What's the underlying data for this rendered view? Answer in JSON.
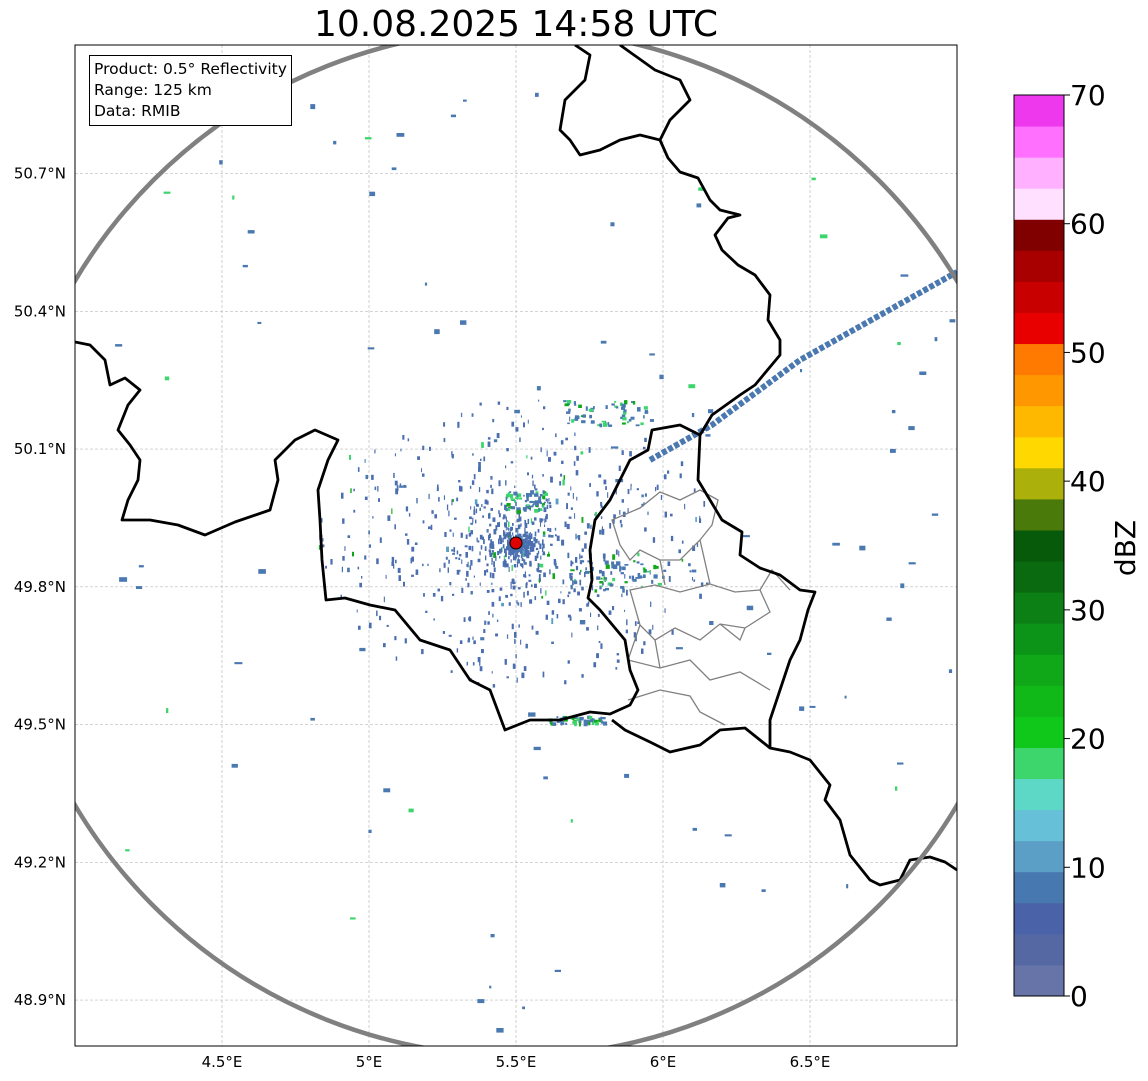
{
  "title": "10.08.2025 14:58 UTC",
  "info": {
    "line1": "Product: 0.5° Reflectivity",
    "line2": "Range: 125 km",
    "line3": "Data: RMIB"
  },
  "map": {
    "lon_range": [
      4.0,
      7.0
    ],
    "lat_range": [
      48.8,
      50.98
    ],
    "lon_ticks": [
      {
        "value": 4.5,
        "label": "4.5°E"
      },
      {
        "value": 5.0,
        "label": "5°E"
      },
      {
        "value": 5.5,
        "label": "5.5°E"
      },
      {
        "value": 6.0,
        "label": "6°E"
      },
      {
        "value": 6.5,
        "label": "6.5°E"
      }
    ],
    "lat_ticks": [
      {
        "value": 48.9,
        "label": "48.9°N"
      },
      {
        "value": 49.2,
        "label": "49.2°N"
      },
      {
        "value": 49.5,
        "label": "49.5°N"
      },
      {
        "value": 49.8,
        "label": "49.8°N"
      },
      {
        "value": 50.1,
        "label": "50.1°N"
      },
      {
        "value": 50.4,
        "label": "50.4°N"
      },
      {
        "value": 50.7,
        "label": "50.7°N"
      }
    ],
    "radar_site": {
      "lon": 5.505,
      "lat": 49.915
    },
    "range_ring_color": "#808080",
    "border_color": "#000000",
    "admin_color": "#808080",
    "site_color": "#e00000"
  },
  "colorbar": {
    "label": "dBZ",
    "min": 0,
    "max": 70,
    "step": 5,
    "ticks": [
      "0",
      "10",
      "20",
      "30",
      "40",
      "50",
      "60",
      "70"
    ],
    "colors": [
      "#6674a8",
      "#5668a4",
      "#4a62a8",
      "#4878b0",
      "#5b9ec6",
      "#66c0d8",
      "#5ed8c6",
      "#3cd66c",
      "#10c81a",
      "#10b818",
      "#10a818",
      "#0c9418",
      "#0c8014",
      "#0a6a10",
      "#065a0a",
      "#4a7a0a",
      "#acb00a",
      "#ffd800",
      "#ffb800",
      "#ff9800",
      "#ff7a00",
      "#e80000",
      "#c80000",
      "#a80000",
      "#800000",
      "#ffe0ff",
      "#ffb0ff",
      "#ff70ff",
      "#ee38ee"
    ]
  }
}
